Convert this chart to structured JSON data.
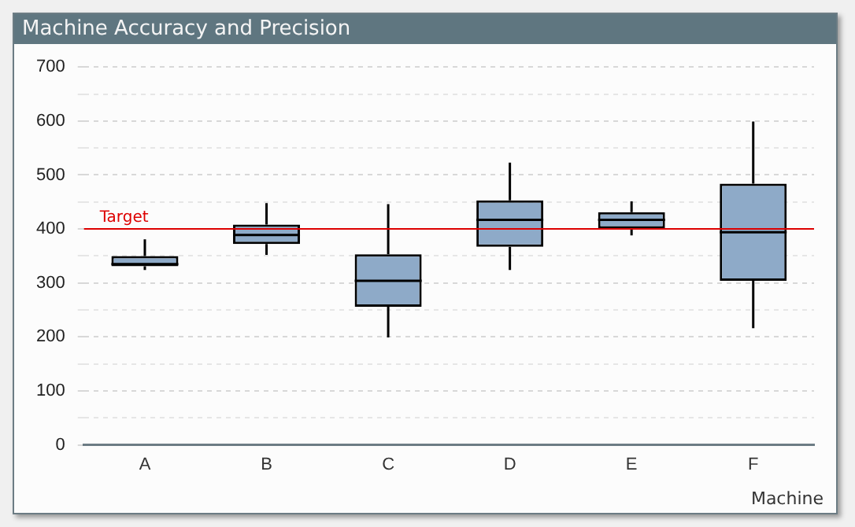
{
  "chart_data": {
    "type": "box",
    "title": "Machine Accuracy and Precision",
    "xlabel": "Machine",
    "categories": [
      "A",
      "B",
      "C",
      "D",
      "E",
      "F"
    ],
    "series": [
      {
        "color": "#8eaac8",
        "boxes": [
          {
            "low": 324,
            "q1": 331,
            "median": 335,
            "q3": 350,
            "high": 381
          },
          {
            "low": 352,
            "q1": 372,
            "median": 389,
            "q3": 408,
            "high": 448
          },
          {
            "low": 199,
            "q1": 256,
            "median": 304,
            "q3": 353,
            "high": 446
          },
          {
            "low": 324,
            "q1": 367,
            "median": 417,
            "q3": 453,
            "high": 523
          },
          {
            "low": 388,
            "q1": 401,
            "median": 417,
            "q3": 431,
            "high": 451
          },
          {
            "low": 216,
            "q1": 304,
            "median": 394,
            "q3": 484,
            "high": 599
          }
        ]
      }
    ],
    "ylim": [
      0,
      700
    ],
    "yticks": [
      0,
      {
        "value": 50,
        "label": null
      },
      100,
      {
        "value": 150,
        "label": null
      },
      200,
      {
        "value": 250,
        "label": null
      },
      300,
      {
        "value": 350,
        "label": null
      },
      400,
      {
        "value": 450,
        "label": null
      },
      500,
      {
        "value": 550,
        "label": null
      },
      600,
      {
        "value": 650,
        "label": null
      },
      700
    ],
    "grid": "y",
    "legend": false,
    "ref_lines": [
      {
        "axis": "y",
        "value": 400,
        "label": "Target",
        "color": "#dd0000"
      }
    ]
  }
}
